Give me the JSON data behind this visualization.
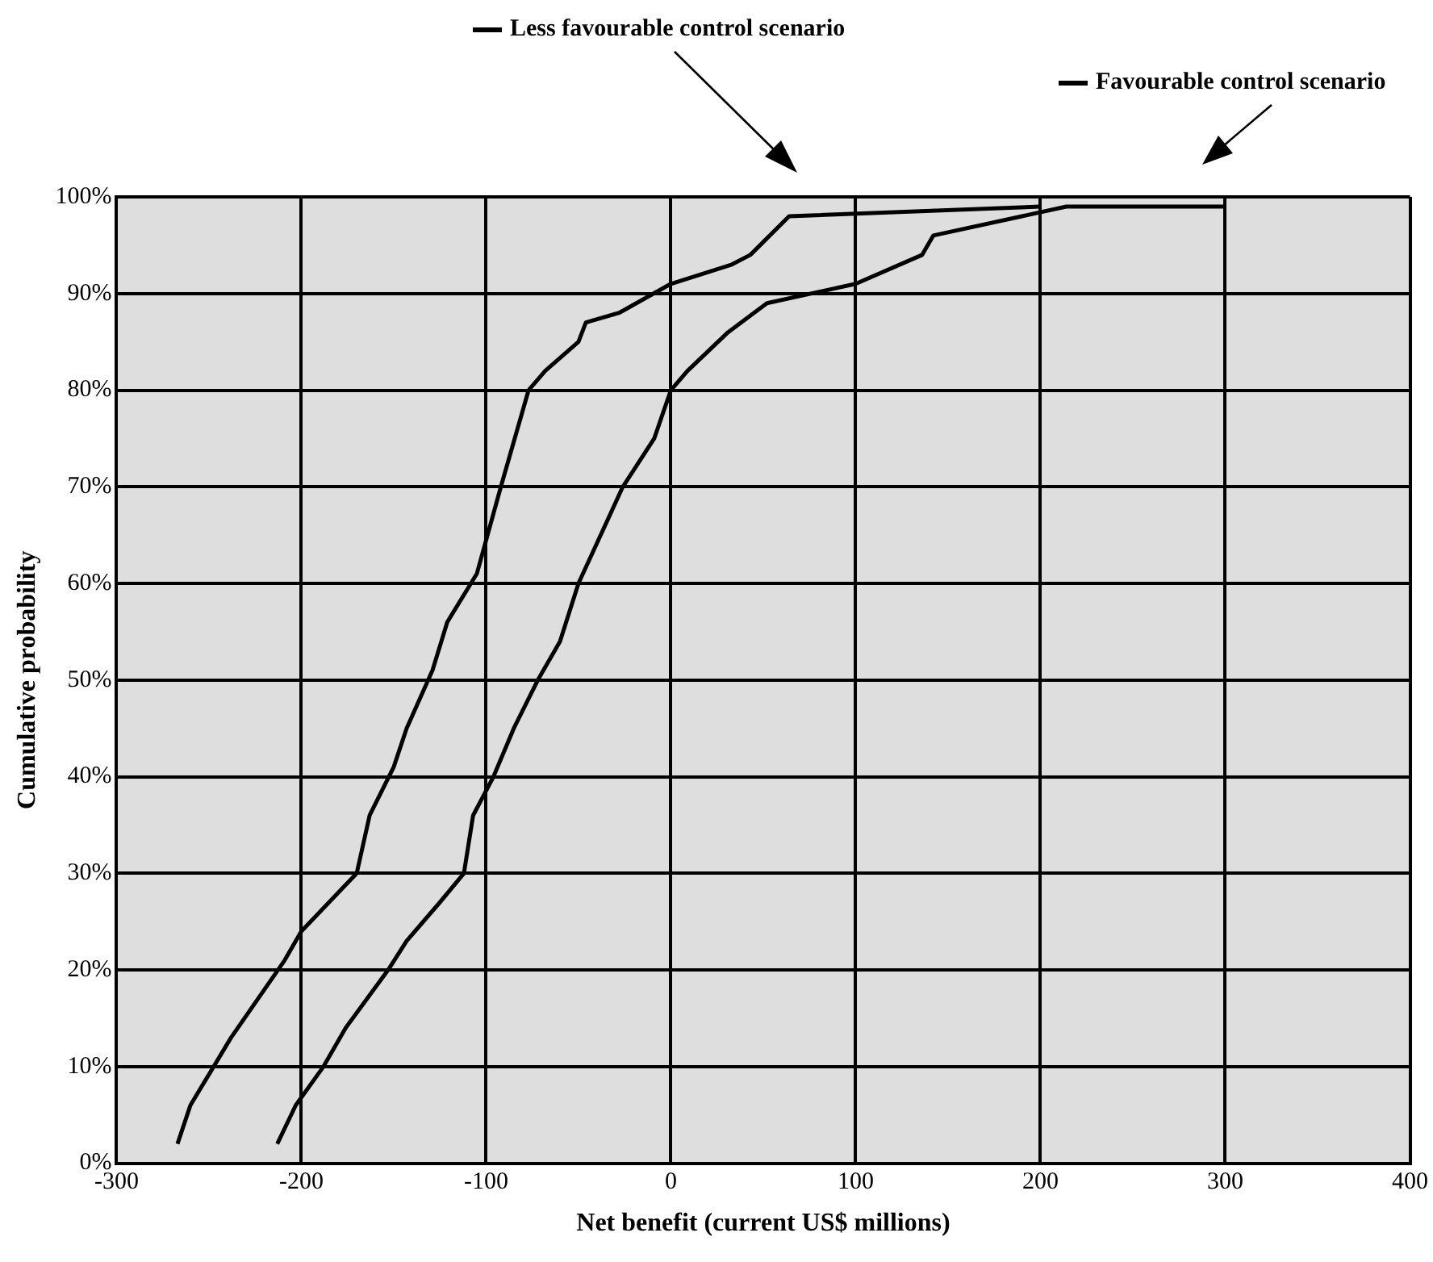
{
  "chart_data": {
    "type": "line",
    "xlabel": "Net benefit (current US$ millions)",
    "ylabel": "Cumulative probability",
    "xlim": [
      -300,
      400
    ],
    "xticks": [
      -300,
      -200,
      -100,
      0,
      100,
      200,
      300,
      400
    ],
    "ylim": [
      0,
      100
    ],
    "yticks": [
      {
        "value": 0,
        "label": "0%"
      },
      {
        "value": 10,
        "label": "10%"
      },
      {
        "value": 20,
        "label": "20%"
      },
      {
        "value": 30,
        "label": "30%"
      },
      {
        "value": 40,
        "label": "40%"
      },
      {
        "value": 50,
        "label": "50%"
      },
      {
        "value": 60,
        "label": "60%"
      },
      {
        "value": 70,
        "label": "70%"
      },
      {
        "value": 80,
        "label": "80%"
      },
      {
        "value": 90,
        "label": "90%"
      },
      {
        "value": 100,
        "label": "100%"
      }
    ],
    "grid": true,
    "legend": "top",
    "marker": "none",
    "line_style": "solid",
    "series": [
      {
        "name": "Less favourable control scenario",
        "color": "#000000",
        "x": [
          -267,
          -260,
          -238,
          -209,
          -200,
          -170,
          -163,
          -150,
          -143,
          -129,
          -121,
          -105,
          -92,
          -77,
          -68,
          -50,
          -46,
          -28,
          0,
          33,
          43,
          64,
          200
        ],
        "values": [
          2,
          6,
          13,
          21,
          24,
          30,
          36,
          41,
          45,
          51,
          56,
          61,
          70,
          80,
          82,
          85,
          87,
          88,
          91,
          93,
          94,
          98,
          99
        ]
      },
      {
        "name": "Favourable control scenario",
        "color": "#000000",
        "x": [
          -213,
          -203,
          -188,
          -176,
          -153,
          -143,
          -125,
          -112,
          -107,
          -96,
          -85,
          -72,
          -60,
          -50,
          -26,
          -9,
          0,
          9,
          31,
          52,
          100,
          136,
          142,
          190,
          214,
          300
        ],
        "values": [
          2,
          6,
          10,
          14,
          20,
          23,
          27,
          30,
          36,
          40,
          45,
          50,
          54,
          60,
          70,
          75,
          80,
          82,
          86,
          89,
          91,
          94,
          96,
          98,
          99,
          99
        ]
      }
    ]
  }
}
